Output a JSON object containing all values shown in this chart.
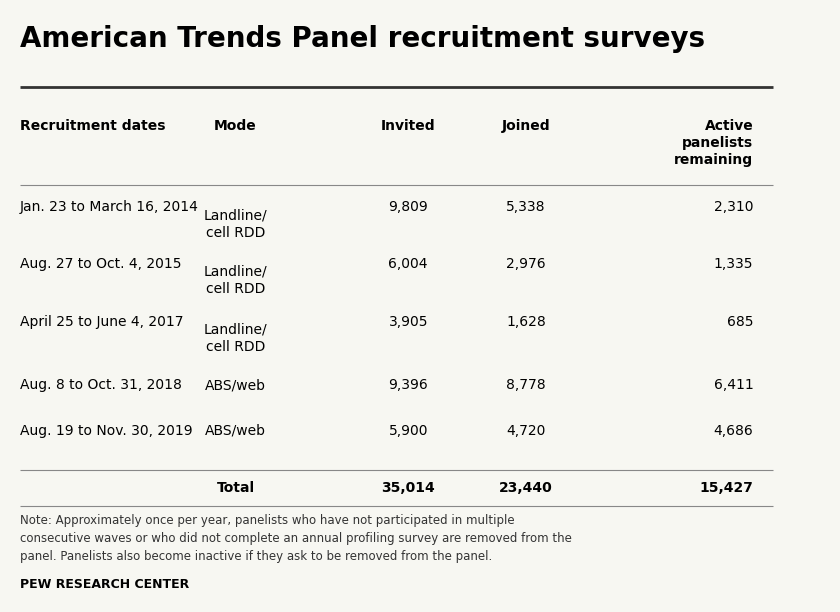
{
  "title": "American Trends Panel recruitment surveys",
  "columns": [
    "Recruitment dates",
    "Mode",
    "Invited",
    "Joined",
    "Active\npanelists\nremaining"
  ],
  "rows": [
    {
      "date": "Jan. 23 to March 16, 2014",
      "mode": "Landline/\ncell RDD",
      "invited": "9,809",
      "joined": "5,338",
      "active": "2,310",
      "multiline": true
    },
    {
      "date": "Aug. 27 to Oct. 4, 2015",
      "mode": "Landline/\ncell RDD",
      "invited": "6,004",
      "joined": "2,976",
      "active": "1,335",
      "multiline": true
    },
    {
      "date": "April 25 to June 4, 2017",
      "mode": "Landline/\ncell RDD",
      "invited": "3,905",
      "joined": "1,628",
      "active": "685",
      "multiline": true
    },
    {
      "date": "Aug. 8 to Oct. 31, 2018",
      "mode": "ABS/web",
      "invited": "9,396",
      "joined": "8,778",
      "active": "6,411",
      "multiline": false
    },
    {
      "date": "Aug. 19 to Nov. 30, 2019",
      "mode": "ABS/web",
      "invited": "5,900",
      "joined": "4,720",
      "active": "4,686",
      "multiline": false
    }
  ],
  "total_row": {
    "label": "Total",
    "invited": "35,014",
    "joined": "23,440",
    "active": "15,427"
  },
  "note": "Note: Approximately once per year, panelists who have not participated in multiple\nconsecutive waves or who did not complete an annual profiling survey are removed from the\npanel. Panelists also become inactive if they ask to be removed from the panel.",
  "footer": "PEW RESEARCH CENTER",
  "bg_color": "#f7f7f2",
  "title_color": "#000000",
  "line_color_dark": "#333333",
  "line_color_mid": "#888888",
  "note_color": "#333333"
}
